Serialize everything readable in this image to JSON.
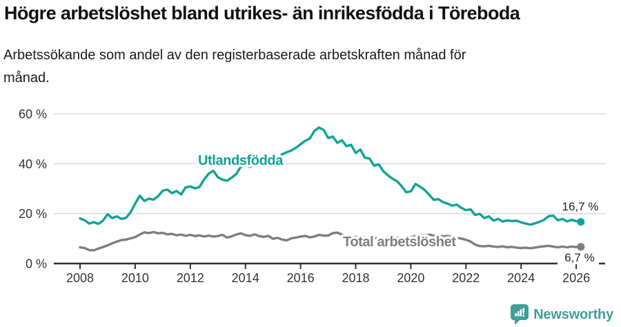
{
  "chart_data": {
    "type": "line",
    "title": "Högre arbetslöshet bland utrikes- än inrikesfödda i Töreboda",
    "subtitle": "Arbetssökande som andel av den registerbaserade arbetskraften månad för månad.",
    "subtitle_lines": [
      "Arbetssökande som andel av den registerbaserade arbetskraften månad för",
      "månad."
    ],
    "x_start": 2008,
    "x_step_years": 0.1666667,
    "x_ticks": [
      2008,
      2010,
      2012,
      2014,
      2016,
      2018,
      2020,
      2022,
      2024,
      2026
    ],
    "x_tick_labels": [
      "2008",
      "2010",
      "2012",
      "2014",
      "2016",
      "2018",
      "2020",
      "2022",
      "2024",
      "2026"
    ],
    "y_ticks": [
      0,
      20,
      40,
      60
    ],
    "y_tick_labels": [
      "0 %",
      "20 %",
      "40 %",
      "60 %"
    ],
    "ylim": [
      0,
      60
    ],
    "xlabel": "",
    "ylabel": "",
    "grid": true,
    "grid_color": "#d8d8d8",
    "axis_color": "#2e2e2e",
    "legend": "inline-labels",
    "series": [
      {
        "name": "Utlandsfödda",
        "color": "#0fa297",
        "end_label": "16,7 %",
        "end_value": 16.7,
        "values": [
          18.1,
          17.3,
          16.0,
          16.6,
          15.9,
          17.2,
          19.8,
          18.2,
          18.9,
          17.9,
          18.3,
          20.5,
          24.0,
          27.2,
          25.1,
          26.0,
          25.6,
          27.0,
          29.2,
          29.6,
          28.2,
          29.1,
          27.7,
          30.5,
          30.9,
          30.1,
          30.7,
          33.7,
          36.0,
          37.2,
          34.6,
          33.6,
          33.2,
          34.4,
          35.9,
          38.8,
          39.4,
          38.7,
          39.9,
          40.3,
          41.0,
          42.1,
          43.0,
          42.4,
          43.8,
          44.6,
          45.3,
          46.4,
          47.8,
          49.2,
          50.1,
          53.1,
          54.5,
          53.6,
          50.3,
          50.9,
          48.4,
          49.4,
          47.0,
          47.6,
          44.3,
          45.7,
          42.4,
          42.1,
          39.2,
          39.8,
          37.0,
          35.4,
          34.0,
          33.0,
          31.0,
          28.6,
          28.9,
          31.9,
          30.8,
          29.5,
          27.6,
          25.5,
          25.8,
          24.6,
          24.0,
          23.2,
          23.6,
          22.3,
          21.4,
          21.7,
          19.5,
          19.9,
          18.2,
          18.9,
          17.2,
          17.9,
          16.8,
          17.3,
          17.0,
          17.2,
          16.5,
          16.0,
          15.6,
          16.1,
          16.7,
          17.5,
          19.0,
          19.2,
          17.3,
          17.9,
          16.9,
          17.5,
          17.0,
          16.7
        ]
      },
      {
        "name": "Total arbetslöshet",
        "color": "#7d7d81",
        "end_label": "6,7 %",
        "end_value": 6.7,
        "values": [
          6.5,
          6.2,
          5.4,
          5.3,
          6.0,
          6.6,
          7.3,
          8.1,
          8.8,
          9.4,
          9.6,
          10.1,
          10.6,
          11.6,
          12.5,
          12.2,
          12.6,
          12.1,
          12.3,
          11.7,
          11.9,
          11.3,
          11.6,
          11.1,
          11.5,
          11.0,
          11.3,
          10.8,
          11.2,
          10.8,
          11.0,
          11.5,
          10.4,
          10.9,
          11.6,
          12.1,
          11.4,
          11.1,
          11.7,
          11.0,
          10.7,
          11.1,
          9.9,
          10.3,
          9.6,
          9.3,
          10.1,
          10.4,
          10.8,
          11.1,
          10.5,
          10.8,
          11.5,
          11.2,
          11.2,
          12.2,
          12.4,
          11.6,
          10.9,
          10.4,
          10.7,
          10.2,
          10.5,
          10.0,
          10.3,
          9.9,
          10.2,
          10.6,
          10.1,
          10.4,
          9.9,
          10.2,
          10.5,
          11.0,
          11.6,
          11.3,
          11.6,
          11.2,
          11.4,
          10.9,
          11.1,
          10.6,
          10.3,
          10.0,
          9.5,
          8.8,
          7.6,
          7.0,
          6.9,
          7.1,
          6.8,
          6.6,
          6.9,
          6.5,
          6.7,
          6.4,
          6.2,
          6.4,
          6.1,
          6.4,
          6.7,
          6.9,
          7.1,
          6.8,
          6.5,
          6.8,
          6.5,
          6.8,
          6.6,
          6.7
        ]
      }
    ]
  },
  "footer": {
    "brand": "Newsworthy",
    "brand_color": "#3f9e99",
    "logo_icon": "bar-chart-speech-bubble-icon"
  }
}
